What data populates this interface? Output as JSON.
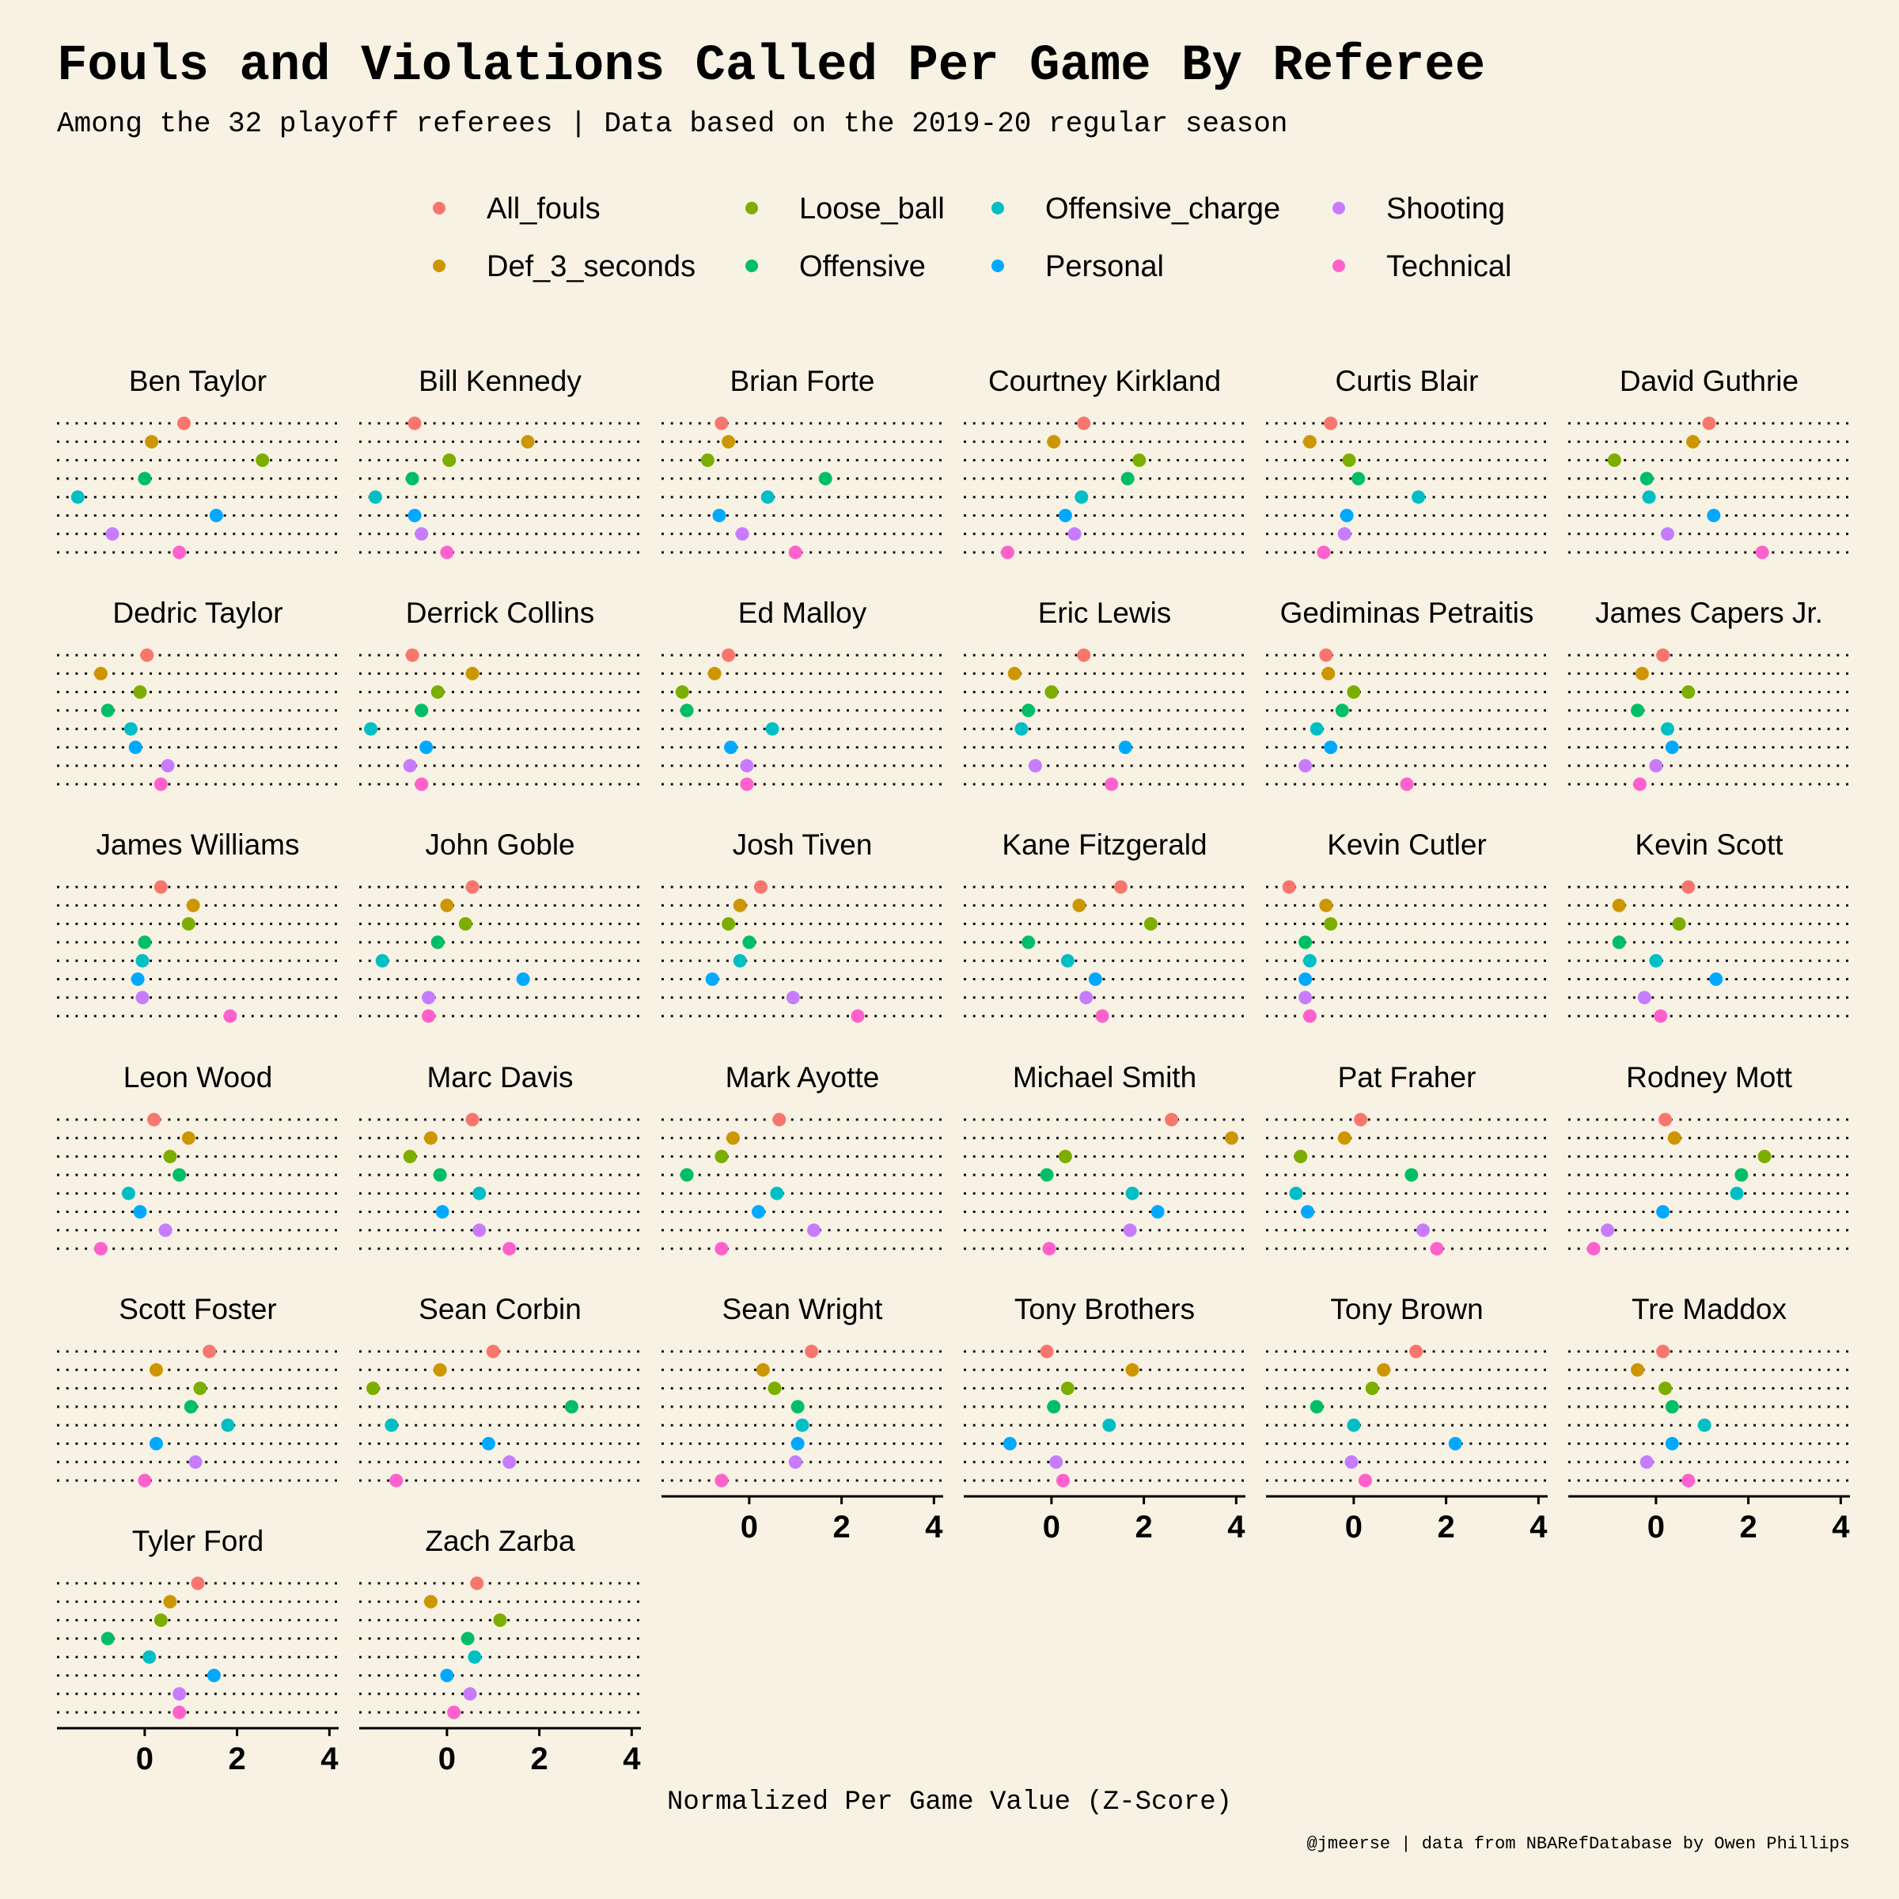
{
  "title": "Fouls and Violations Called Per Game By Referee",
  "subtitle": "Among the 32 playoff referees  |  Data based on the 2019-20 regular season",
  "caption": "@jmeerse  | data from NBARefDatabase by Owen Phillips",
  "chart_data": {
    "type": "scatter",
    "xlabel": "Normalized Per Game Value (Z-Score)",
    "ylabel": "",
    "xlim": [
      -1.9,
      4.2
    ],
    "x_ticks": [
      0,
      2,
      4
    ],
    "grid": "dotted horizontal line per foul type",
    "legend_position": "top",
    "series": [
      {
        "name": "All_fouls",
        "color": "#F8766D"
      },
      {
        "name": "Def_3_seconds",
        "color": "#CD9600"
      },
      {
        "name": "Loose_ball",
        "color": "#7CAE00"
      },
      {
        "name": "Offensive",
        "color": "#00BE67"
      },
      {
        "name": "Offensive_charge",
        "color": "#00BFC4"
      },
      {
        "name": "Personal",
        "color": "#00A9FF"
      },
      {
        "name": "Shooting",
        "color": "#C77CFF"
      },
      {
        "name": "Technical",
        "color": "#FF61CC"
      }
    ],
    "panels": [
      {
        "referee": "Ben Taylor",
        "values": [
          0.85,
          0.15,
          2.55,
          0.0,
          -1.45,
          1.55,
          -0.7,
          0.75
        ]
      },
      {
        "referee": "Bill Kennedy",
        "values": [
          -0.7,
          1.75,
          0.05,
          -0.75,
          -1.55,
          -0.7,
          -0.55,
          0.0
        ]
      },
      {
        "referee": "Brian Forte",
        "values": [
          -0.6,
          -0.45,
          -0.9,
          1.65,
          0.4,
          -0.65,
          -0.15,
          1.0
        ]
      },
      {
        "referee": "Courtney Kirkland",
        "values": [
          0.7,
          0.05,
          1.9,
          1.65,
          0.65,
          0.3,
          0.5,
          -0.95
        ]
      },
      {
        "referee": "Curtis Blair",
        "values": [
          -0.5,
          -0.95,
          -0.1,
          0.1,
          1.4,
          -0.15,
          -0.2,
          -0.65
        ]
      },
      {
        "referee": "David Guthrie",
        "values": [
          1.15,
          0.8,
          -0.9,
          -0.2,
          -0.15,
          1.25,
          0.25,
          2.3
        ]
      },
      {
        "referee": "Dedric Taylor",
        "values": [
          0.05,
          -0.95,
          -0.1,
          -0.8,
          -0.3,
          -0.2,
          0.5,
          0.35
        ]
      },
      {
        "referee": "Derrick Collins",
        "values": [
          -0.75,
          0.55,
          -0.2,
          -0.55,
          -1.65,
          -0.45,
          -0.8,
          -0.55
        ]
      },
      {
        "referee": "Ed Malloy",
        "values": [
          -0.45,
          -0.75,
          -1.45,
          -1.35,
          0.5,
          -0.4,
          -0.05,
          -0.05
        ]
      },
      {
        "referee": "Eric Lewis",
        "values": [
          0.7,
          -0.8,
          0.0,
          -0.5,
          -0.65,
          1.6,
          -0.35,
          1.3
        ]
      },
      {
        "referee": "Gediminas Petraitis",
        "values": [
          -0.6,
          -0.55,
          0.0,
          -0.25,
          -0.8,
          -0.5,
          -1.05,
          1.15
        ]
      },
      {
        "referee": "James Capers Jr.",
        "values": [
          0.15,
          -0.3,
          0.7,
          -0.4,
          0.25,
          0.35,
          0.0,
          -0.35
        ]
      },
      {
        "referee": "James Williams",
        "values": [
          0.35,
          1.05,
          0.95,
          0.0,
          -0.05,
          -0.15,
          -0.05,
          1.85
        ]
      },
      {
        "referee": "John Goble",
        "values": [
          0.55,
          0.0,
          0.4,
          -0.2,
          -1.4,
          1.65,
          -0.4,
          -0.4
        ]
      },
      {
        "referee": "Josh Tiven",
        "values": [
          0.25,
          -0.2,
          -0.45,
          0.0,
          -0.2,
          -0.8,
          0.95,
          2.35
        ]
      },
      {
        "referee": "Kane Fitzgerald",
        "values": [
          1.5,
          0.6,
          2.15,
          -0.5,
          0.35,
          0.95,
          0.75,
          1.1
        ]
      },
      {
        "referee": "Kevin Cutler",
        "values": [
          -1.4,
          -0.6,
          -0.5,
          -1.05,
          -0.95,
          -1.05,
          -1.05,
          -0.95
        ]
      },
      {
        "referee": "Kevin Scott",
        "values": [
          0.7,
          -0.8,
          0.5,
          -0.8,
          0.0,
          1.3,
          -0.25,
          0.1
        ]
      },
      {
        "referee": "Leon Wood",
        "values": [
          0.2,
          0.95,
          0.55,
          0.75,
          -0.35,
          -0.1,
          0.45,
          -0.95
        ]
      },
      {
        "referee": "Marc Davis",
        "values": [
          0.55,
          -0.35,
          -0.8,
          -0.15,
          0.7,
          -0.1,
          0.7,
          1.35
        ]
      },
      {
        "referee": "Mark Ayotte",
        "values": [
          0.65,
          -0.35,
          -0.6,
          -1.35,
          0.6,
          0.2,
          1.4,
          -0.6
        ]
      },
      {
        "referee": "Michael Smith",
        "values": [
          2.6,
          3.9,
          0.3,
          -0.1,
          1.75,
          2.3,
          1.7,
          -0.05
        ]
      },
      {
        "referee": "Pat Fraher",
        "values": [
          0.15,
          -0.2,
          -1.15,
          1.25,
          -1.25,
          -1.0,
          1.5,
          1.8
        ]
      },
      {
        "referee": "Rodney Mott",
        "values": [
          0.2,
          0.4,
          2.35,
          1.85,
          1.75,
          0.15,
          -1.05,
          -1.35
        ]
      },
      {
        "referee": "Scott Foster",
        "values": [
          1.4,
          0.25,
          1.2,
          1.0,
          1.8,
          0.25,
          1.1,
          0.0
        ]
      },
      {
        "referee": "Sean Corbin",
        "values": [
          1.0,
          -0.15,
          -1.6,
          2.7,
          -1.2,
          0.9,
          1.35,
          -1.1
        ]
      },
      {
        "referee": "Sean Wright",
        "values": [
          1.35,
          0.3,
          0.55,
          1.05,
          1.15,
          1.05,
          1.0,
          -0.6
        ]
      },
      {
        "referee": "Tony Brothers",
        "values": [
          -0.1,
          1.75,
          0.35,
          0.05,
          1.25,
          -0.9,
          0.1,
          0.25
        ]
      },
      {
        "referee": "Tony Brown",
        "values": [
          1.35,
          0.65,
          0.4,
          -0.8,
          0.0,
          2.2,
          -0.05,
          0.25
        ]
      },
      {
        "referee": "Tre Maddox",
        "values": [
          0.15,
          -0.4,
          0.2,
          0.35,
          1.05,
          0.35,
          -0.2,
          0.7
        ]
      },
      {
        "referee": "Tyler Ford",
        "values": [
          1.15,
          0.55,
          0.35,
          -0.8,
          0.1,
          1.5,
          0.75,
          0.75
        ]
      },
      {
        "referee": "Zach Zarba",
        "values": [
          0.65,
          -0.35,
          1.15,
          0.45,
          0.6,
          0.0,
          0.5,
          0.15
        ]
      }
    ]
  }
}
